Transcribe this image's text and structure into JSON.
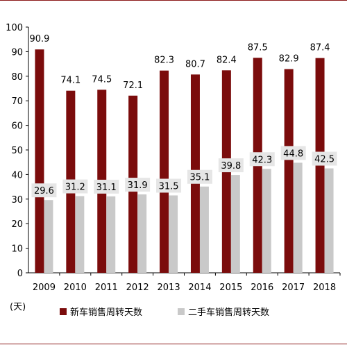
{
  "chart_data": {
    "type": "bar",
    "categories": [
      "2009",
      "2010",
      "2011",
      "2012",
      "2013",
      "2014",
      "2015",
      "2016",
      "2017",
      "2018"
    ],
    "series": [
      {
        "name": "新车销售周转天数",
        "values": [
          90.9,
          74.1,
          74.5,
          72.1,
          82.3,
          80.7,
          82.4,
          87.5,
          82.9,
          87.4
        ],
        "color": "#7b0c0c"
      },
      {
        "name": "二手车销售周转天数",
        "values": [
          29.6,
          31.2,
          31.1,
          31.9,
          31.5,
          35.1,
          39.8,
          42.3,
          44.8,
          42.5
        ],
        "color": "#c9c9c9"
      }
    ],
    "y_ticks": [
      "0",
      "10",
      "20",
      "30",
      "40",
      "50",
      "60",
      "70",
      "80",
      "90",
      "100"
    ],
    "ylim": [
      0,
      100
    ],
    "ylabel": "(天)",
    "grid": false,
    "legend_position": "bottom",
    "label_box_color": "#e6e6e6"
  }
}
